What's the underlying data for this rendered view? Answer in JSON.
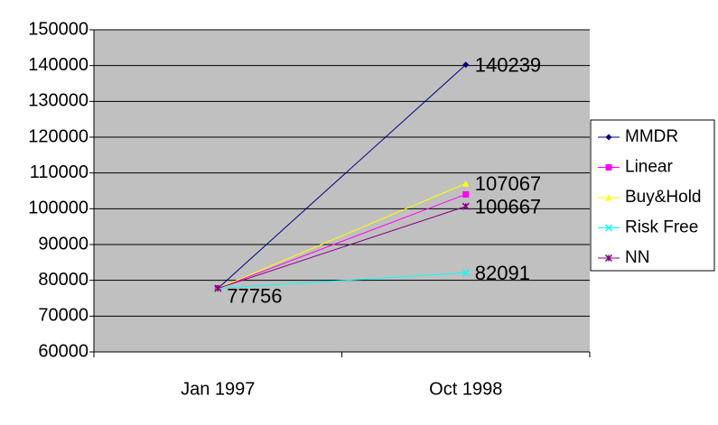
{
  "chart_data": {
    "type": "line",
    "categories": [
      "Jan 1997",
      "Oct 1998"
    ],
    "series": [
      {
        "name": "MMDR",
        "color": "#000080",
        "marker": "diamond",
        "values": [
          77756,
          140239
        ],
        "labeled_points": [
          1
        ]
      },
      {
        "name": "Linear",
        "color": "#ff00ff",
        "marker": "square",
        "values": [
          77756,
          104000
        ],
        "labeled_points": []
      },
      {
        "name": "Buy&Hold",
        "color": "#ffff00",
        "marker": "triangle",
        "values": [
          77756,
          107067
        ],
        "labeled_points": [
          1
        ]
      },
      {
        "name": "Risk Free",
        "color": "#00ffff",
        "marker": "x",
        "values": [
          77756,
          82091
        ],
        "labeled_points": [
          0,
          1
        ]
      },
      {
        "name": "NN",
        "color": "#800080",
        "marker": "star",
        "values": [
          77756,
          100667
        ],
        "labeled_points": [
          1
        ]
      }
    ],
    "ylim": [
      60000,
      150000
    ],
    "yticks": [
      60000,
      70000,
      80000,
      90000,
      100000,
      110000,
      120000,
      130000,
      140000,
      150000
    ],
    "grid": true,
    "plot_background": "#c0c0c0",
    "legend": "right"
  }
}
